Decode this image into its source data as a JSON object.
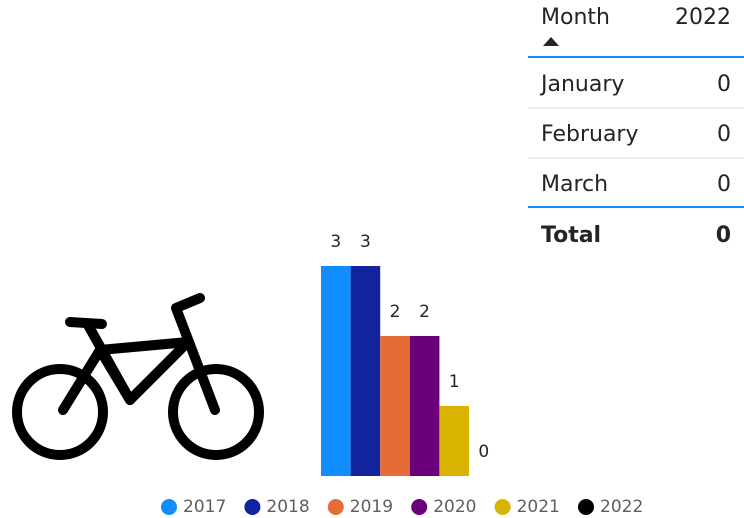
{
  "table": {
    "header": [
      "Month",
      "2022"
    ],
    "rows": [
      [
        "January",
        "0"
      ],
      [
        "February",
        "0"
      ],
      [
        "March",
        "0"
      ]
    ],
    "total": [
      "Total",
      "0"
    ]
  },
  "chart_data": {
    "type": "bar",
    "series": [
      {
        "name": "2017",
        "color": "#118DFF",
        "values": [
          3
        ]
      },
      {
        "name": "2018",
        "color": "#12239E",
        "values": [
          3
        ]
      },
      {
        "name": "2019",
        "color": "#E66C37",
        "values": [
          2
        ]
      },
      {
        "name": "2020",
        "color": "#6B007B",
        "values": [
          2
        ]
      },
      {
        "name": "2021",
        "color": "#D9B300",
        "values": [
          1
        ]
      },
      {
        "name": "2022",
        "color": "#000000",
        "values": [
          0
        ]
      }
    ]
  }
}
